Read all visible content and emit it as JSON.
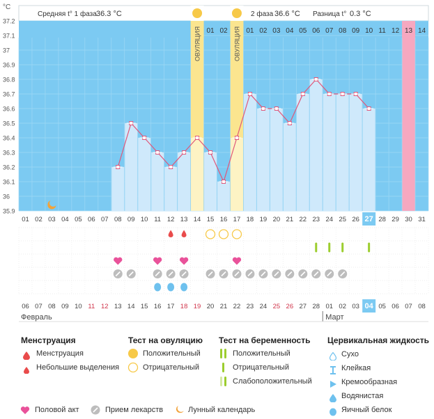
{
  "header": {
    "phase1_label": "Средняя t° 1 фаза",
    "phase1_value": "36.3 °C",
    "phase2_label": "2 фаза",
    "phase2_value": "36.6 °C",
    "diff_label": "Разница t°",
    "diff_value": "0.3 °C"
  },
  "colors": {
    "chart_bg": "#7ccaf2",
    "bar": "#cfe9fb",
    "bar_future": "#e4f3fc",
    "line": "#e0577a",
    "ovulation_band": "#fbe58f",
    "ovulation_band_light": "#fdf3c4",
    "period_predicted": "#f6a8c0",
    "grid_light": "#9fd8f5",
    "today_bg": "#7ccaf2",
    "menstruation": "#e94b4b",
    "ovulation_positive": "#f7c948",
    "pregnancy_test": "#9ccd2e",
    "medicine": "#bdbdbd",
    "sex": "#e9529a",
    "moon": "#f2a33a",
    "fluid": "#6ec1ee"
  },
  "chart_data": {
    "type": "bar",
    "title": "",
    "unit_label": "°C",
    "ylim": [
      35.9,
      37.2
    ],
    "yticks": [
      "37.2",
      "37.1",
      "37",
      "36.9",
      "36.8",
      "36.7",
      "36.6",
      "36.5",
      "36.4",
      "36.3",
      "36.2",
      "36.1",
      "36",
      "35.9"
    ],
    "ovulation_text": "ОВУЛЯЦИЯ",
    "days": [
      {
        "cycle": "01",
        "date": "06",
        "weekend": false,
        "temp": null
      },
      {
        "cycle": "02",
        "date": "07",
        "weekend": false,
        "temp": null
      },
      {
        "cycle": "03",
        "date": "08",
        "weekend": false,
        "temp": null
      },
      {
        "cycle": "04",
        "date": "09",
        "weekend": false,
        "temp": null
      },
      {
        "cycle": "05",
        "date": "10",
        "weekend": false,
        "temp": null
      },
      {
        "cycle": "06",
        "date": "11",
        "weekend": true,
        "temp": null
      },
      {
        "cycle": "07",
        "date": "12",
        "weekend": true,
        "temp": null
      },
      {
        "cycle": "08",
        "date": "13",
        "weekend": false,
        "temp": 36.2
      },
      {
        "cycle": "09",
        "date": "14",
        "weekend": false,
        "temp": 36.5
      },
      {
        "cycle": "10",
        "date": "15",
        "weekend": false,
        "temp": 36.4
      },
      {
        "cycle": "11",
        "date": "16",
        "weekend": false,
        "temp": 36.3
      },
      {
        "cycle": "12",
        "date": "17",
        "weekend": false,
        "temp": 36.2
      },
      {
        "cycle": "13",
        "date": "18",
        "weekend": true,
        "temp": 36.3
      },
      {
        "cycle": "14",
        "date": "19",
        "weekend": true,
        "temp": 36.4
      },
      {
        "cycle": "15",
        "date": "20",
        "weekend": false,
        "temp": 36.3
      },
      {
        "cycle": "16",
        "date": "21",
        "weekend": false,
        "temp": 36.1
      },
      {
        "cycle": "17",
        "date": "22",
        "weekend": false,
        "temp": 36.4
      },
      {
        "cycle": "18",
        "date": "23",
        "weekend": false,
        "temp": 36.7
      },
      {
        "cycle": "19",
        "date": "24",
        "weekend": false,
        "temp": 36.6
      },
      {
        "cycle": "20",
        "date": "25",
        "weekend": true,
        "temp": 36.6
      },
      {
        "cycle": "21",
        "date": "26",
        "weekend": true,
        "temp": 36.5
      },
      {
        "cycle": "22",
        "date": "27",
        "weekend": false,
        "temp": 36.7
      },
      {
        "cycle": "23",
        "date": "28",
        "weekend": false,
        "temp": 36.8
      },
      {
        "cycle": "24",
        "date": "01",
        "weekend": false,
        "temp": 36.7
      },
      {
        "cycle": "25",
        "date": "02",
        "weekend": false,
        "temp": 36.7
      },
      {
        "cycle": "26",
        "date": "03",
        "weekend": false,
        "temp": 36.7
      },
      {
        "cycle": "27",
        "date": "04",
        "weekend": false,
        "temp": 36.6
      },
      {
        "cycle": "28",
        "date": "05",
        "weekend": false,
        "temp": null
      },
      {
        "cycle": "29",
        "date": "06",
        "weekend": false,
        "temp": null
      },
      {
        "cycle": "30",
        "date": "07",
        "weekend": false,
        "temp": null
      },
      {
        "cycle": "31",
        "date": "08",
        "weekend": false,
        "temp": null
      }
    ],
    "top_labels": [
      "01",
      "02",
      "01",
      "02",
      "03",
      "04",
      "05",
      "06",
      "07",
      "08",
      "09",
      "10",
      "11",
      "12",
      "13",
      "14"
    ],
    "today_cycle_day": "27",
    "today_date": "04",
    "months": [
      "Февраль",
      "Март"
    ],
    "ovulation_days": [
      "14",
      "17"
    ],
    "predicted_period_days": [
      "30"
    ],
    "markers": {
      "moon": [
        "03"
      ],
      "menstruation_light": [
        "12",
        "13"
      ],
      "ovulation_negative": [
        "15",
        "16",
        "17"
      ],
      "pregnancy_positive": [
        "23",
        "24",
        "25",
        "27"
      ],
      "sex": [
        "08",
        "11",
        "13",
        "17"
      ],
      "medicine": [
        "08",
        "09",
        "11",
        "12",
        "13",
        "15",
        "16",
        "17",
        "18",
        "19",
        "20",
        "21",
        "22",
        "23",
        "24",
        "25"
      ],
      "fluid_egg_white": [
        "11",
        "12",
        "13"
      ]
    }
  },
  "legend": {
    "menstruation": {
      "title": "Менструация",
      "items": [
        "Менструация",
        "Небольшие выделения"
      ]
    },
    "ovulation_test": {
      "title": "Тест на овуляцию",
      "items": [
        "Положительный",
        "Отрицательный"
      ]
    },
    "pregnancy_test": {
      "title": "Тест на беременность",
      "items": [
        "Положительный",
        "Отрицательный",
        "Слабоположительный"
      ]
    },
    "cervical_fluid": {
      "title": "Цервикальная жидкость",
      "items": [
        "Сухо",
        "Клейкая",
        "Кремообразная",
        "Водянистая",
        "Яичный белок"
      ]
    },
    "bottom": [
      "Половой акт",
      "Прием лекарств",
      "Лунный календарь"
    ]
  }
}
